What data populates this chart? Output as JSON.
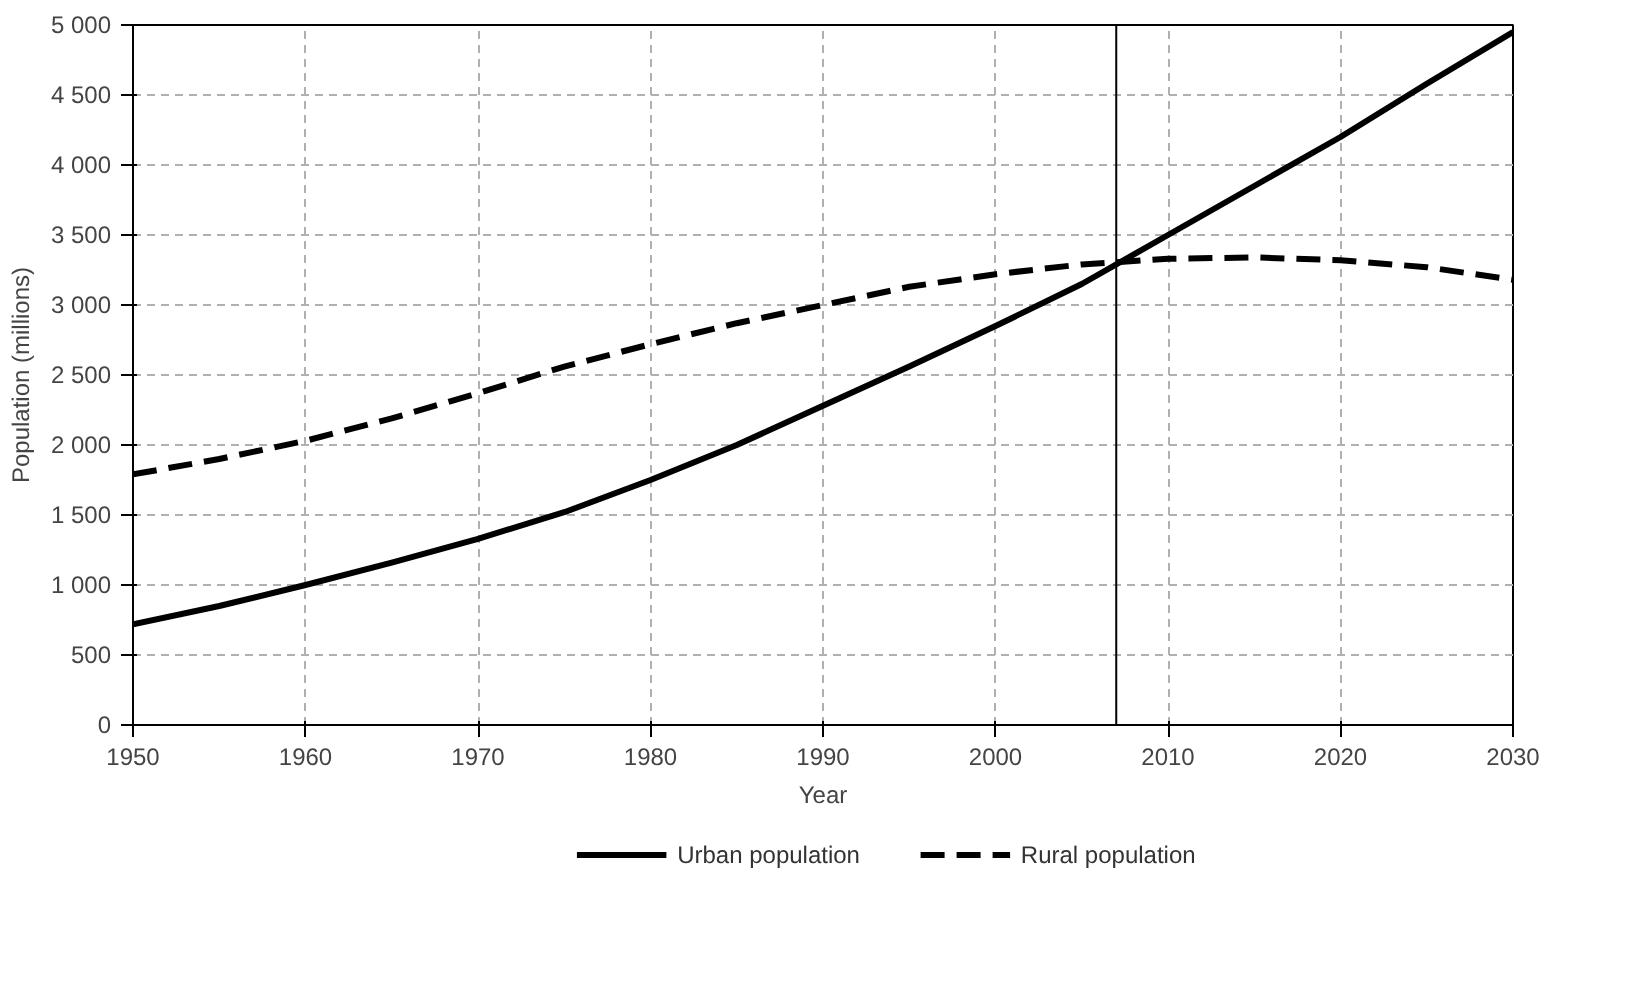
{
  "chart_data": {
    "type": "line",
    "xlabel": "Year",
    "ylabel": "Population (millions)",
    "x": [
      1950,
      1955,
      1960,
      1965,
      1970,
      1975,
      1980,
      1985,
      1990,
      1995,
      2000,
      2005,
      2010,
      2015,
      2020,
      2025,
      2030
    ],
    "series": [
      {
        "name": "Urban population",
        "color": "#000000",
        "line_style": "solid",
        "values": [
          720,
          850,
          1000,
          1160,
          1330,
          1520,
          1750,
          2000,
          2280,
          2560,
          2850,
          3150,
          3500,
          3850,
          4200,
          4580,
          4950
        ]
      },
      {
        "name": "Rural population",
        "color": "#000000",
        "line_style": "dashed",
        "values": [
          1790,
          1900,
          2030,
          2190,
          2370,
          2560,
          2720,
          2870,
          3000,
          3130,
          3220,
          3290,
          3330,
          3340,
          3320,
          3270,
          3180
        ]
      }
    ],
    "xlim": [
      1950,
      2030
    ],
    "xticks": [
      1950,
      1960,
      1970,
      1980,
      1990,
      2000,
      2010,
      2020,
      2030
    ],
    "ylim": [
      0,
      5000
    ],
    "yticks": [
      {
        "value": 0,
        "label": "0"
      },
      {
        "value": 500,
        "label": "500"
      },
      {
        "value": 1000,
        "label": "1 000"
      },
      {
        "value": 1500,
        "label": "1 500"
      },
      {
        "value": 2000,
        "label": "2 000"
      },
      {
        "value": 2500,
        "label": "2 500"
      },
      {
        "value": 3000,
        "label": "3 000"
      },
      {
        "value": 3500,
        "label": "3 500"
      },
      {
        "value": 4000,
        "label": "4 000"
      },
      {
        "value": 4500,
        "label": "4 500"
      },
      {
        "value": 5000,
        "label": "5 000"
      }
    ],
    "ref_lines": [
      {
        "axis": "x",
        "value": 2007,
        "color": "#000000",
        "line_style": "solid"
      }
    ],
    "grid": true,
    "legend": "bottom",
    "marker": "none"
  }
}
